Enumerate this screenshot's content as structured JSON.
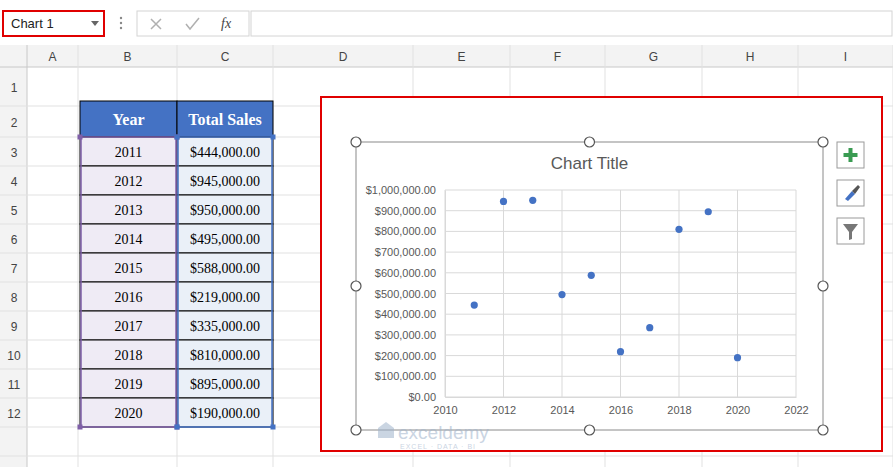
{
  "name_box": "Chart 1",
  "formula_bar": {
    "function_label": "fx"
  },
  "columns": [
    "A",
    "B",
    "C",
    "D",
    "E",
    "F",
    "G",
    "H",
    "I"
  ],
  "rows": [
    1,
    2,
    3,
    4,
    5,
    6,
    7,
    8,
    9,
    10,
    11,
    12
  ],
  "table": {
    "header": [
      "Year",
      "Total Sales"
    ],
    "rows": [
      [
        "2011",
        "$444,000.00"
      ],
      [
        "2012",
        "$945,000.00"
      ],
      [
        "2013",
        "$950,000.00"
      ],
      [
        "2014",
        "$495,000.00"
      ],
      [
        "2015",
        "$588,000.00"
      ],
      [
        "2016",
        "$219,000.00"
      ],
      [
        "2017",
        "$335,000.00"
      ],
      [
        "2018",
        "$810,000.00"
      ],
      [
        "2019",
        "$895,000.00"
      ],
      [
        "2020",
        "$190,000.00"
      ]
    ]
  },
  "chart_data": {
    "type": "scatter",
    "title": "Chart Title",
    "x": [
      2011,
      2012,
      2013,
      2014,
      2015,
      2016,
      2017,
      2018,
      2019,
      2020
    ],
    "values": [
      444000,
      945000,
      950000,
      495000,
      588000,
      219000,
      335000,
      810000,
      895000,
      190000
    ],
    "color": "#4472c4",
    "marker": "circle",
    "xlim": [
      2010,
      2022
    ],
    "xticks": [
      2010,
      2012,
      2014,
      2016,
      2018,
      2020,
      2022
    ],
    "ylim": [
      0,
      1000000
    ],
    "yticks": [
      {
        "value": 0,
        "label": "$0.00"
      },
      {
        "value": 100000,
        "label": "$100,000.00"
      },
      {
        "value": 200000,
        "label": "$200,000.00"
      },
      {
        "value": 300000,
        "label": "$300,000.00"
      },
      {
        "value": 400000,
        "label": "$400,000.00"
      },
      {
        "value": 500000,
        "label": "$500,000.00"
      },
      {
        "value": 600000,
        "label": "$600,000.00"
      },
      {
        "value": 700000,
        "label": "$700,000.00"
      },
      {
        "value": 800000,
        "label": "$800,000.00"
      },
      {
        "value": 900000,
        "label": "$900,000.00"
      },
      {
        "value": 1000000,
        "label": "$1,000,000.00"
      }
    ],
    "grid": true
  },
  "watermark": {
    "brand": "exceldemy",
    "tagline": "EXCEL · DATA · BI"
  }
}
